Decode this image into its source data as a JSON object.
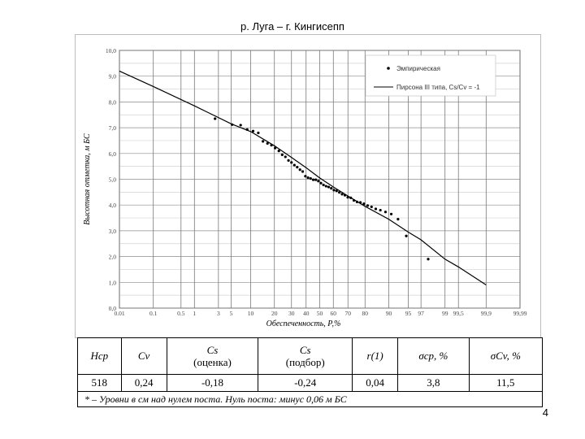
{
  "chart_data": {
    "type": "scatter",
    "title": "р. Луга – г. Кингисепп",
    "xlabel": "Обеспеченность, Р,%",
    "ylabel": "Высотная отметка, м БС",
    "x_scale": "probability",
    "x_ticks": [
      "0.01",
      "0.1",
      "0.5",
      "1",
      "3",
      "5",
      "10",
      "20",
      "30",
      "40",
      "50",
      "60",
      "70",
      "80",
      "90",
      "95",
      "97",
      "99",
      "99,5",
      "99,9",
      "99,99"
    ],
    "x_tick_values": [
      0.01,
      0.1,
      0.5,
      1,
      3,
      5,
      10,
      20,
      30,
      40,
      50,
      60,
      70,
      80,
      90,
      95,
      97,
      99,
      99.5,
      99.9,
      99.99
    ],
    "ylim": [
      0,
      10
    ],
    "y_ticks": [
      "0,0",
      "1,0",
      "2,0",
      "3,0",
      "4,0",
      "5,0",
      "6,0",
      "7,0",
      "8,0",
      "9,0",
      "10,0"
    ],
    "grid": true,
    "legend_position": "top-right",
    "series": [
      {
        "name": "Эмпирическая",
        "mark": "point",
        "color": "#000000",
        "points": [
          [
            2.6,
            7.35
          ],
          [
            5.2,
            7.12
          ],
          [
            7.1,
            7.1
          ],
          [
            8.9,
            6.93
          ],
          [
            10.8,
            6.87
          ],
          [
            12.7,
            6.8
          ],
          [
            14.6,
            6.47
          ],
          [
            16.6,
            6.39
          ],
          [
            18.5,
            6.32
          ],
          [
            20.4,
            6.21
          ],
          [
            22.4,
            6.1
          ],
          [
            24.3,
            5.95
          ],
          [
            26.2,
            5.87
          ],
          [
            28.1,
            5.73
          ],
          [
            30.0,
            5.65
          ],
          [
            31.9,
            5.55
          ],
          [
            33.8,
            5.47
          ],
          [
            35.7,
            5.37
          ],
          [
            37.6,
            5.3
          ],
          [
            39.5,
            5.12
          ],
          [
            41.4,
            5.06
          ],
          [
            43.3,
            5.03
          ],
          [
            45.2,
            4.98
          ],
          [
            47.1,
            4.98
          ],
          [
            49.0,
            4.93
          ],
          [
            50.9,
            4.85
          ],
          [
            52.8,
            4.78
          ],
          [
            54.7,
            4.73
          ],
          [
            56.6,
            4.7
          ],
          [
            58.5,
            4.65
          ],
          [
            60.4,
            4.58
          ],
          [
            62.3,
            4.55
          ],
          [
            64.2,
            4.49
          ],
          [
            66.1,
            4.42
          ],
          [
            68.0,
            4.38
          ],
          [
            69.9,
            4.3
          ],
          [
            71.8,
            4.28
          ],
          [
            73.7,
            4.18
          ],
          [
            75.6,
            4.12
          ],
          [
            77.5,
            4.1
          ],
          [
            79.4,
            4.05
          ],
          [
            81.3,
            3.98
          ],
          [
            83.2,
            3.93
          ],
          [
            85.1,
            3.85
          ],
          [
            87.0,
            3.8
          ],
          [
            88.9,
            3.73
          ],
          [
            90.8,
            3.65
          ],
          [
            92.7,
            3.45
          ],
          [
            94.6,
            2.8
          ],
          [
            97.8,
            1.9
          ]
        ]
      },
      {
        "name": "Пирсона III типа, Cs/Cv = -1",
        "mark": "line",
        "color": "#000000",
        "points": [
          [
            0.01,
            9.2
          ],
          [
            0.1,
            8.6
          ],
          [
            1,
            7.85
          ],
          [
            5,
            7.15
          ],
          [
            10,
            6.85
          ],
          [
            20,
            6.3
          ],
          [
            30,
            5.85
          ],
          [
            40,
            5.45
          ],
          [
            50,
            5.05
          ],
          [
            60,
            4.7
          ],
          [
            70,
            4.35
          ],
          [
            80,
            3.95
          ],
          [
            90,
            3.45
          ],
          [
            95,
            2.95
          ],
          [
            97,
            2.65
          ],
          [
            99,
            1.9
          ],
          [
            99.5,
            1.6
          ],
          [
            99.9,
            0.9
          ]
        ]
      }
    ]
  },
  "table": {
    "headers": {
      "h_sr": "Hср",
      "cv": "Cv",
      "cs_est_sym": "Cs",
      "cs_est_note": "(оценка)",
      "cs_fit_sym": "Cs",
      "cs_fit_note": "(подбор)",
      "r1": "r(1)",
      "sigma_h": "σср, %",
      "sigma_cv": "σCv, %"
    },
    "values": {
      "h_sr": "518",
      "cv": "0,24",
      "cs_est": "-0,18",
      "cs_fit": "-0,24",
      "r1": "0,04",
      "sigma_h": "3,8",
      "sigma_cv": "11,5"
    },
    "note": "* – Уровни в см над нулем поста. Нуль поста: минус 0,06 м БС"
  },
  "page_number": "4"
}
